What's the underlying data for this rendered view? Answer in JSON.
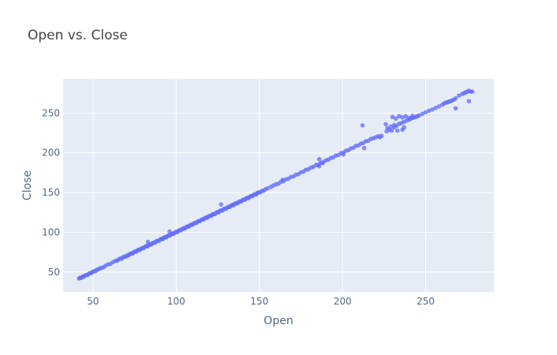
{
  "chart_data": {
    "type": "scatter",
    "title": "Open vs. Close",
    "xlabel": "Open",
    "ylabel": "Close",
    "xlim": [
      32,
      291
    ],
    "ylim": [
      25,
      293
    ],
    "x_ticks": [
      50,
      100,
      150,
      200,
      250
    ],
    "y_ticks": [
      50,
      100,
      150,
      200,
      250
    ],
    "grid": true,
    "plot_background": "#E5ECF6",
    "grid_color": "#FFFFFF",
    "marker_color": "#636EFA",
    "marker_opacity": 0.75,
    "series": [
      {
        "points": [
          [
            41.5,
            41.8
          ],
          [
            42.3,
            43.0
          ],
          [
            43.0,
            42.6
          ],
          [
            43.8,
            44.4
          ],
          [
            44.5,
            44.1
          ],
          [
            45.2,
            45.6
          ],
          [
            46.0,
            46.4
          ],
          [
            46.8,
            46.3
          ],
          [
            47.5,
            48.0
          ],
          [
            48.3,
            48.6
          ],
          [
            49.0,
            48.8
          ],
          [
            49.8,
            50.3
          ],
          [
            50.6,
            50.9
          ],
          [
            51.4,
            51.2
          ],
          [
            52.2,
            52.8
          ],
          [
            53.0,
            53.3
          ],
          [
            54.0,
            54.4
          ],
          [
            55.0,
            55.3
          ],
          [
            56.3,
            56.0
          ],
          [
            57.5,
            58.0
          ],
          [
            59.0,
            59.6
          ],
          [
            60.5,
            60.3
          ],
          [
            62.0,
            62.4
          ],
          [
            63.5,
            64.1
          ],
          [
            64.5,
            64.2
          ],
          [
            65.5,
            66.0
          ],
          [
            66.5,
            67.0
          ],
          [
            67.3,
            66.8
          ],
          [
            68.2,
            68.9
          ],
          [
            69.0,
            69.5
          ],
          [
            69.8,
            69.4
          ],
          [
            70.6,
            71.2
          ],
          [
            71.4,
            71.0
          ],
          [
            72.2,
            72.8
          ],
          [
            73.0,
            73.5
          ],
          [
            73.8,
            73.3
          ],
          [
            74.6,
            75.2
          ],
          [
            75.3,
            75.8
          ],
          [
            76.0,
            75.6
          ],
          [
            76.8,
            77.4
          ],
          [
            77.5,
            78.2
          ],
          [
            78.2,
            77.8
          ],
          [
            79.0,
            79.6
          ],
          [
            79.8,
            80.5
          ],
          [
            80.5,
            80.1
          ],
          [
            81.3,
            81.9
          ],
          [
            82.0,
            82.6
          ],
          [
            82.8,
            82.3
          ],
          [
            83.5,
            84.1
          ],
          [
            84.3,
            84.9
          ],
          [
            85.0,
            84.6
          ],
          [
            85.8,
            86.4
          ],
          [
            86.5,
            87.1
          ],
          [
            87.2,
            86.8
          ],
          [
            88.0,
            88.6
          ],
          [
            88.8,
            89.4
          ],
          [
            89.5,
            89.1
          ],
          [
            90.3,
            90.9
          ],
          [
            91.0,
            91.6
          ],
          [
            91.8,
            91.3
          ],
          [
            92.5,
            93.1
          ],
          [
            93.3,
            93.9
          ],
          [
            94.0,
            93.6
          ],
          [
            94.8,
            95.4
          ],
          [
            95.5,
            96.1
          ],
          [
            96.3,
            95.9
          ],
          [
            97.0,
            97.6
          ],
          [
            97.8,
            98.4
          ],
          [
            98.5,
            98.1
          ],
          [
            99.3,
            99.9
          ],
          [
            100.0,
            100.6
          ],
          [
            100.8,
            100.3
          ],
          [
            101.5,
            102.1
          ],
          [
            102.3,
            102.9
          ],
          [
            103.0,
            102.6
          ],
          [
            103.8,
            104.4
          ],
          [
            104.5,
            105.1
          ],
          [
            105.3,
            104.8
          ],
          [
            106.0,
            106.6
          ],
          [
            106.8,
            107.4
          ],
          [
            107.5,
            107.1
          ],
          [
            108.3,
            108.9
          ],
          [
            109.0,
            109.6
          ],
          [
            109.8,
            109.4
          ],
          [
            110.5,
            111.1
          ],
          [
            111.3,
            111.9
          ],
          [
            112.0,
            111.6
          ],
          [
            112.8,
            113.4
          ],
          [
            113.5,
            114.1
          ],
          [
            114.3,
            113.9
          ],
          [
            115.0,
            115.6
          ],
          [
            115.8,
            116.4
          ],
          [
            116.5,
            116.1
          ],
          [
            117.3,
            117.9
          ],
          [
            118.0,
            118.6
          ],
          [
            118.8,
            118.4
          ],
          [
            119.5,
            120.1
          ],
          [
            120.3,
            120.9
          ],
          [
            121.0,
            120.6
          ],
          [
            121.8,
            122.4
          ],
          [
            122.5,
            123.1
          ],
          [
            123.3,
            122.9
          ],
          [
            124.0,
            124.6
          ],
          [
            124.8,
            125.4
          ],
          [
            125.5,
            125.1
          ],
          [
            126.3,
            126.9
          ],
          [
            127.0,
            127.6
          ],
          [
            127.8,
            127.4
          ],
          [
            128.5,
            129.1
          ],
          [
            129.3,
            129.9
          ],
          [
            130.0,
            129.6
          ],
          [
            130.8,
            131.4
          ],
          [
            131.5,
            132.1
          ],
          [
            132.3,
            131.9
          ],
          [
            133.0,
            133.6
          ],
          [
            133.8,
            134.4
          ],
          [
            134.5,
            134.1
          ],
          [
            135.3,
            135.9
          ],
          [
            136.0,
            136.6
          ],
          [
            136.8,
            136.4
          ],
          [
            137.5,
            138.1
          ],
          [
            138.3,
            138.9
          ],
          [
            139.0,
            138.6
          ],
          [
            139.8,
            140.4
          ],
          [
            140.5,
            141.1
          ],
          [
            141.3,
            140.9
          ],
          [
            142.0,
            142.6
          ],
          [
            142.8,
            143.4
          ],
          [
            143.5,
            143.1
          ],
          [
            144.3,
            144.9
          ],
          [
            145.0,
            145.6
          ],
          [
            145.8,
            145.4
          ],
          [
            146.5,
            147.1
          ],
          [
            147.3,
            147.9
          ],
          [
            148.0,
            147.6
          ],
          [
            148.8,
            149.4
          ],
          [
            149.5,
            150.1
          ],
          [
            150.5,
            150.3
          ],
          [
            151.5,
            151.9
          ],
          [
            152.5,
            152.3
          ],
          [
            153.5,
            154.0
          ],
          [
            155.0,
            155.4
          ],
          [
            157.0,
            157.2
          ],
          [
            158.5,
            159.0
          ],
          [
            160.0,
            160.5
          ],
          [
            161.5,
            161.2
          ],
          [
            163.0,
            163.6
          ],
          [
            164.5,
            164.3
          ],
          [
            166.0,
            166.5
          ],
          [
            167.5,
            167.4
          ],
          [
            169.0,
            169.6
          ],
          [
            170.5,
            170.3
          ],
          [
            172.0,
            172.6
          ],
          [
            173.5,
            173.2
          ],
          [
            175.0,
            175.5
          ],
          [
            176.5,
            176.3
          ],
          [
            178.0,
            178.6
          ],
          [
            179.5,
            179.2
          ],
          [
            181.0,
            181.5
          ],
          [
            182.5,
            182.3
          ],
          [
            184.0,
            184.6
          ],
          [
            185.5,
            185.2
          ],
          [
            187.0,
            187.5
          ],
          [
            188.5,
            188.3
          ],
          [
            190.0,
            190.6
          ],
          [
            191.5,
            191.2
          ],
          [
            193.0,
            193.5
          ],
          [
            194.5,
            194.3
          ],
          [
            196.0,
            196.6
          ],
          [
            197.5,
            197.2
          ],
          [
            199.0,
            199.5
          ],
          [
            200.5,
            200.3
          ],
          [
            202.0,
            202.6
          ],
          [
            203.5,
            203.2
          ],
          [
            205.0,
            205.5
          ],
          [
            206.5,
            206.3
          ],
          [
            208.0,
            208.6
          ],
          [
            209.5,
            209.2
          ],
          [
            211.0,
            211.5
          ],
          [
            212.5,
            212.3
          ],
          [
            214.0,
            214.6
          ],
          [
            215.5,
            215.2
          ],
          [
            217.0,
            217.5
          ],
          [
            218.5,
            218.3
          ],
          [
            220.0,
            219.6
          ],
          [
            221.5,
            220.9
          ],
          [
            222.5,
            219.5
          ],
          [
            223.5,
            221.2
          ],
          [
            227.0,
            231.0
          ],
          [
            229.0,
            233.0
          ],
          [
            231.0,
            235.0
          ],
          [
            232.5,
            234.0
          ],
          [
            234.0,
            236.5
          ],
          [
            235.5,
            237.5
          ],
          [
            237.0,
            239.0
          ],
          [
            238.5,
            240.5
          ],
          [
            240.0,
            241.5
          ],
          [
            241.0,
            243.0
          ],
          [
            242.0,
            244.0
          ],
          [
            243.0,
            244.5
          ],
          [
            244.0,
            245.0
          ],
          [
            245.0,
            246.0
          ],
          [
            246.0,
            247.0
          ],
          [
            248.0,
            249.0
          ],
          [
            250.0,
            251.0
          ],
          [
            252.0,
            253.0
          ],
          [
            254.0,
            254.5
          ],
          [
            256.0,
            256.5
          ],
          [
            258.0,
            258.5
          ],
          [
            260.0,
            260.5
          ],
          [
            261.0,
            262.0
          ],
          [
            262.0,
            263.0
          ],
          [
            263.0,
            263.5
          ],
          [
            264.0,
            264.5
          ],
          [
            265.0,
            265.0
          ],
          [
            266.0,
            266.0
          ],
          [
            267.0,
            267.0
          ],
          [
            268.0,
            268.5
          ],
          [
            270.0,
            272.0
          ],
          [
            272.0,
            274.0
          ],
          [
            273.0,
            275.0
          ],
          [
            274.0,
            276.0
          ],
          [
            275.0,
            277.0
          ],
          [
            276.0,
            278.0
          ],
          [
            277.0,
            277.0
          ],
          [
            230.0,
            245.0
          ],
          [
            232.0,
            243.0
          ],
          [
            234.0,
            246.0
          ],
          [
            236.0,
            244.5
          ],
          [
            238.0,
            246.0
          ],
          [
            240.0,
            244.0
          ],
          [
            242.0,
            246.5
          ],
          [
            226.0,
            236.0
          ],
          [
            226.5,
            227.0
          ],
          [
            228.0,
            229.0
          ],
          [
            229.5,
            228.0
          ],
          [
            231.0,
            232.0
          ],
          [
            233.0,
            228.0
          ],
          [
            236.0,
            229.0
          ],
          [
            237.0,
            232.0
          ],
          [
            212.0,
            234.5
          ],
          [
            200.5,
            198.0
          ],
          [
            213.0,
            206.0
          ],
          [
            186.0,
            192.0
          ],
          [
            188.0,
            187.0
          ],
          [
            186.0,
            183.0
          ],
          [
            164.0,
            166.0
          ],
          [
            127.0,
            135.0
          ],
          [
            96.0,
            101.0
          ],
          [
            83.0,
            88.0
          ],
          [
            268.0,
            256.0
          ],
          [
            276.0,
            265.0
          ],
          [
            278.0,
            277.0
          ]
        ]
      }
    ]
  }
}
